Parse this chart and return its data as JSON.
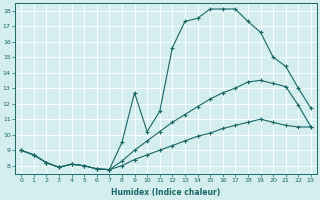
{
  "xlabel": "Humidex (Indice chaleur)",
  "bg_color": "#d4edee",
  "line_color": "#1a6666",
  "grid_color": "#ffffff",
  "xlim": [
    -0.5,
    23.5
  ],
  "ylim": [
    7.5,
    18.5
  ],
  "xticks": [
    0,
    1,
    2,
    3,
    4,
    5,
    6,
    7,
    8,
    9,
    10,
    11,
    12,
    13,
    14,
    15,
    16,
    17,
    18,
    19,
    20,
    21,
    22,
    23
  ],
  "yticks": [
    8,
    9,
    10,
    11,
    12,
    13,
    14,
    15,
    16,
    17,
    18
  ],
  "curve1_x": [
    0,
    1,
    2,
    3,
    4,
    5,
    6,
    7,
    8,
    9,
    10,
    11,
    12,
    13,
    14,
    15,
    16,
    17,
    18,
    19,
    20,
    21,
    22,
    23
  ],
  "curve1_y": [
    9.0,
    8.7,
    8.2,
    7.9,
    8.1,
    8.0,
    7.8,
    7.75,
    9.5,
    12.7,
    10.2,
    11.5,
    15.6,
    17.3,
    17.5,
    18.1,
    18.1,
    18.1,
    17.3,
    16.6,
    15.0,
    14.4,
    13.0,
    11.7
  ],
  "curve2_x": [
    0,
    1,
    2,
    3,
    4,
    5,
    6,
    7,
    8,
    9,
    10,
    11,
    12,
    13,
    14,
    15,
    16,
    17,
    18,
    19,
    20,
    21,
    22,
    23
  ],
  "curve2_y": [
    9.0,
    8.7,
    8.2,
    7.9,
    8.1,
    8.0,
    7.8,
    7.75,
    8.3,
    9.0,
    9.6,
    10.2,
    10.8,
    11.3,
    11.8,
    12.3,
    12.7,
    13.0,
    13.4,
    13.5,
    13.3,
    13.1,
    11.9,
    10.5
  ],
  "curve3_x": [
    0,
    1,
    2,
    3,
    4,
    5,
    6,
    7,
    8,
    9,
    10,
    11,
    12,
    13,
    14,
    15,
    16,
    17,
    18,
    19,
    20,
    21,
    22,
    23
  ],
  "curve3_y": [
    9.0,
    8.7,
    8.2,
    7.9,
    8.1,
    8.0,
    7.8,
    7.75,
    8.0,
    8.4,
    8.7,
    9.0,
    9.3,
    9.6,
    9.9,
    10.1,
    10.4,
    10.6,
    10.8,
    11.0,
    10.8,
    10.6,
    10.5,
    10.5
  ]
}
